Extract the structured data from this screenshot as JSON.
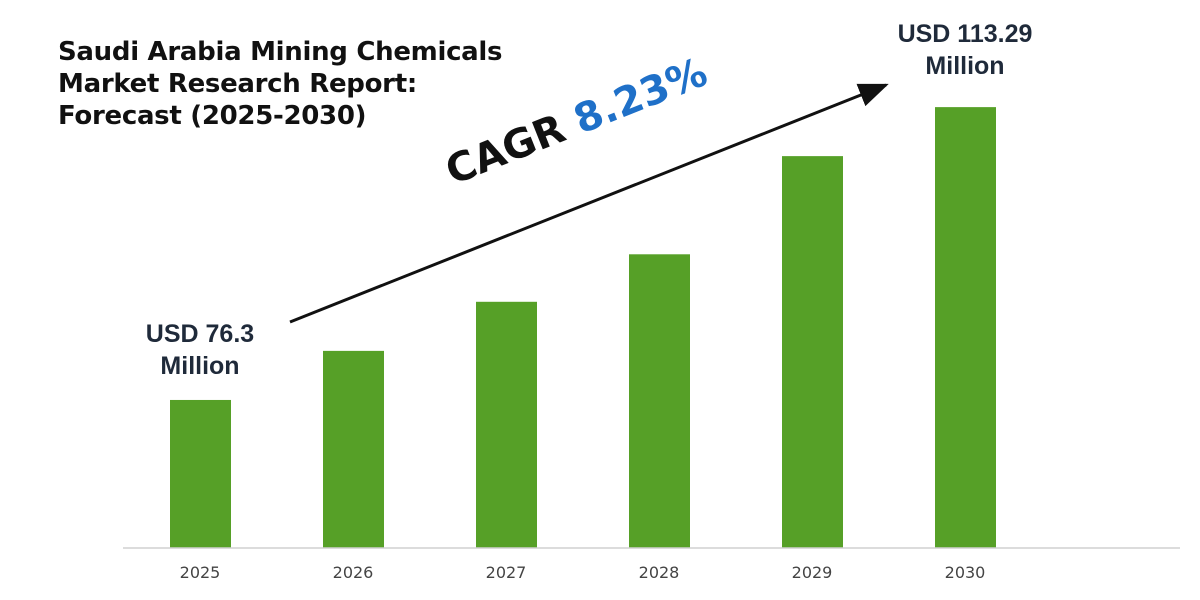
{
  "chart_data": {
    "type": "bar",
    "title": "Saudi Arabia Mining Chemicals\nMarket Research Report:\nForecast (2025-2030)",
    "categories": [
      "2025",
      "2026",
      "2027",
      "2028",
      "2029",
      "2030"
    ],
    "values": [
      76.3,
      82.5,
      88.7,
      94.7,
      107.1,
      113.29
    ],
    "unit": "USD Million",
    "ylim": [
      57.6,
      120
    ],
    "grid": false,
    "bar_color": "#56a027",
    "annotations": {
      "start_label_line1": "USD 76.3",
      "start_label_line2": "Million",
      "end_label_line1": "USD 113.29",
      "end_label_line2": "Million",
      "cagr_prefix": "CAGR",
      "cagr_value": "8.23%",
      "cagr_color": "#1f70c8"
    }
  }
}
